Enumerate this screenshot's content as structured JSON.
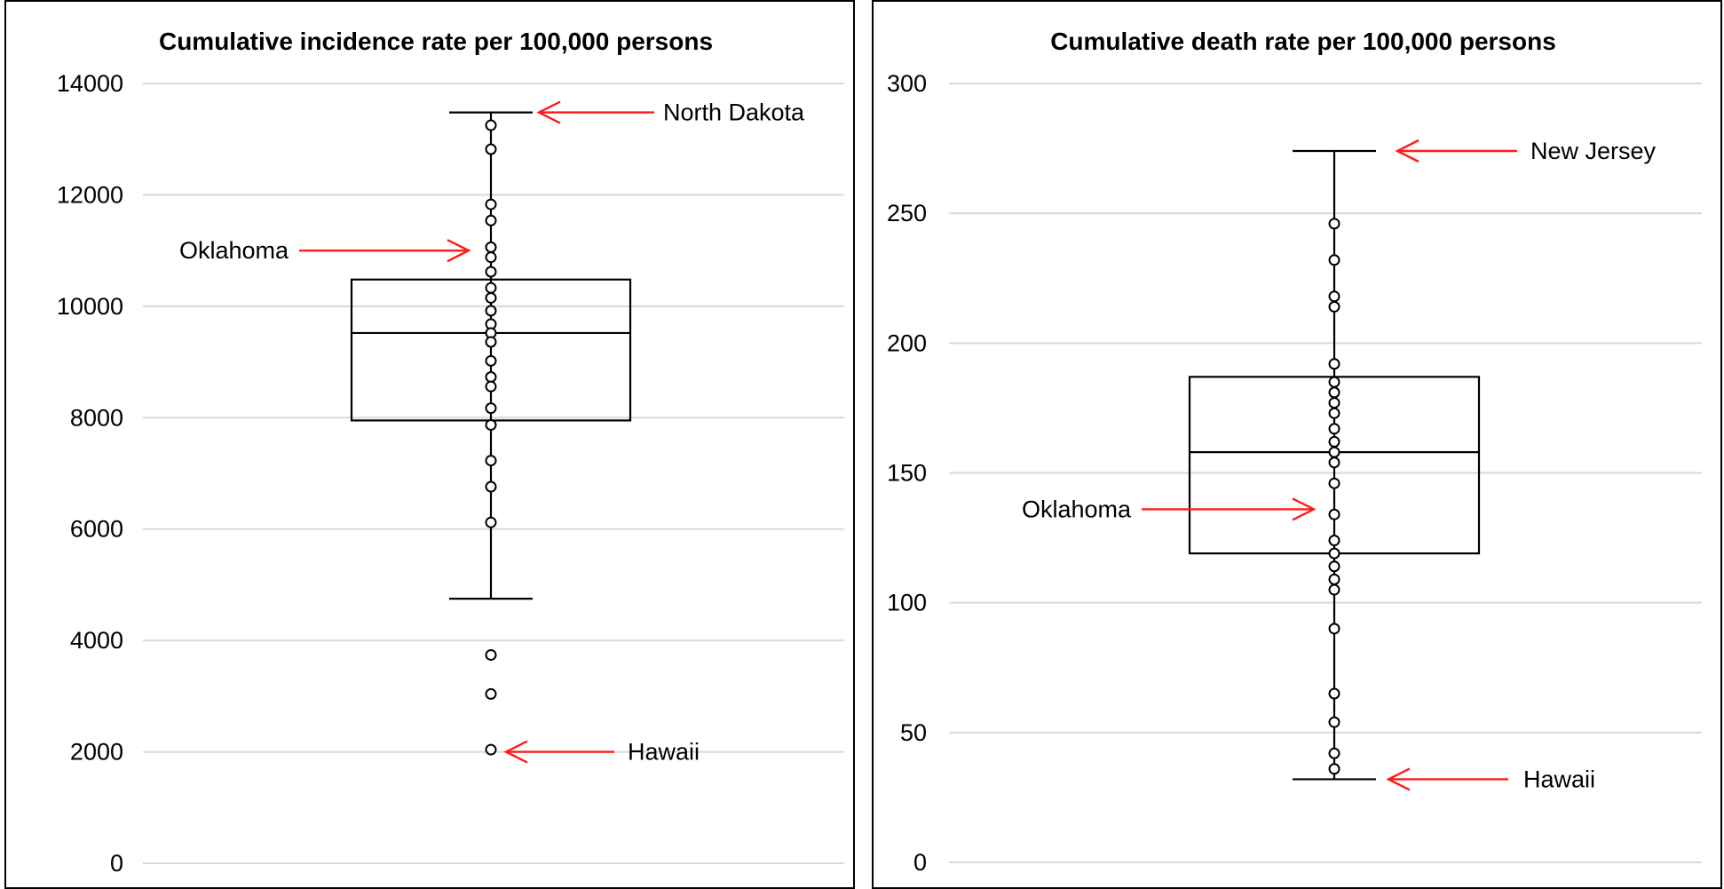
{
  "chart_data": [
    {
      "type": "box",
      "title": "Cumulative incidence rate per 100,000 persons",
      "xlabel": "",
      "ylabel": "",
      "ylim": [
        0,
        14000
      ],
      "yticks": [
        0,
        2000,
        4000,
        6000,
        8000,
        10000,
        12000,
        14000
      ],
      "ytick_labels": [
        "0",
        "2000",
        "4000",
        "6000",
        "8000",
        "10000",
        "12000",
        "14000"
      ],
      "grid": true,
      "box": {
        "q1": 7950,
        "median": 9520,
        "q3": 10480,
        "whisker_low": 4750,
        "whisker_high": 13480
      },
      "points": [
        13250,
        12820,
        11830,
        11540,
        11060,
        10880,
        10620,
        10330,
        10150,
        9920,
        9680,
        9520,
        9360,
        9020,
        8730,
        8560,
        8170,
        7870,
        7230,
        6760,
        6120,
        3740,
        3040,
        2040
      ],
      "annotations": [
        {
          "label": "North Dakota",
          "value": 13480,
          "side": "right"
        },
        {
          "label": "Oklahoma",
          "value": 11000,
          "side": "left"
        },
        {
          "label": "Hawaii",
          "value": 2000,
          "side": "right"
        }
      ]
    },
    {
      "type": "box",
      "title": "Cumulative death rate per 100,000 persons",
      "xlabel": "",
      "ylabel": "",
      "ylim": [
        0,
        300
      ],
      "yticks": [
        0,
        50,
        100,
        150,
        200,
        250,
        300
      ],
      "ytick_labels": [
        "0",
        "50",
        "100",
        "150",
        "200",
        "250",
        "300"
      ],
      "grid": true,
      "box": {
        "q1": 119,
        "median": 158,
        "q3": 187,
        "whisker_low": 32,
        "whisker_high": 274
      },
      "points": [
        246,
        232,
        218,
        214,
        192,
        185,
        181,
        177,
        173,
        167,
        162,
        158,
        154,
        146,
        134,
        124,
        119,
        114,
        109,
        105,
        90,
        65,
        54,
        42,
        36
      ],
      "annotations": [
        {
          "label": "New Jersey",
          "value": 274,
          "side": "right"
        },
        {
          "label": "Oklahoma",
          "value": 136,
          "side": "left"
        },
        {
          "label": "Hawaii",
          "value": 32,
          "side": "right"
        }
      ]
    }
  ],
  "colors": {
    "grid": "#d9d9d9",
    "arrow": "#ff1a1a",
    "ink": "#000000"
  }
}
